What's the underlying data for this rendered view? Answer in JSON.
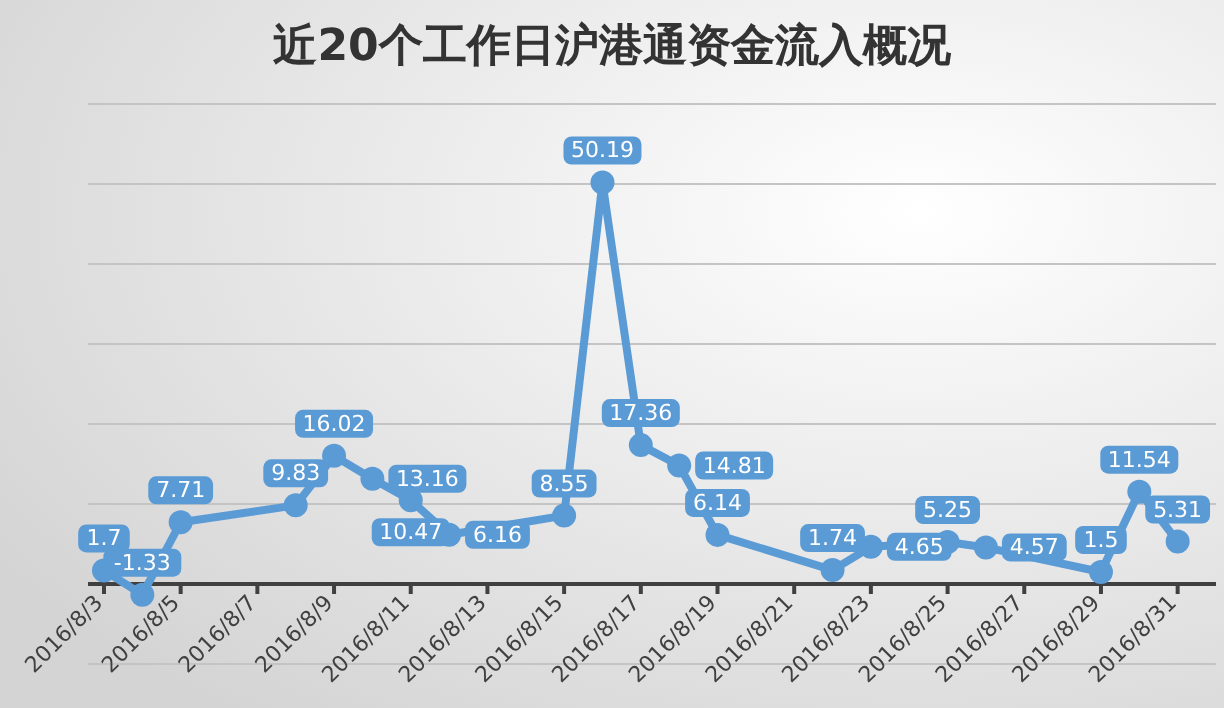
{
  "chart_data": {
    "type": "line",
    "title": "近20个工作日沪港通资金流入概况",
    "x": [
      "2016-08-03",
      "2016-08-04",
      "2016-08-05",
      "2016-08-08",
      "2016-08-09",
      "2016-08-10",
      "2016-08-11",
      "2016-08-12",
      "2016-08-15",
      "2016-08-16",
      "2016-08-17",
      "2016-08-18",
      "2016-08-19",
      "2016-08-22",
      "2016-08-23",
      "2016-08-25",
      "2016-08-26",
      "2016-08-29",
      "2016-08-30",
      "2016-08-31"
    ],
    "series": [
      {
        "color": "#5b9bd5",
        "values": [
          1.7,
          -1.33,
          7.71,
          9.83,
          16.02,
          13.16,
          10.47,
          6.16,
          8.55,
          50.19,
          17.36,
          14.81,
          6.14,
          1.74,
          4.65,
          5.25,
          4.57,
          1.5,
          11.54,
          5.31
        ]
      }
    ],
    "xlim": [
      "2016-08-02T14:00",
      "2016-09-01"
    ],
    "xticks": [
      {
        "value": "2016-08-03",
        "label": "2016/8/3"
      },
      {
        "value": "2016-08-05",
        "label": "2016/8/5"
      },
      {
        "value": "2016-08-07",
        "label": "2016/8/7"
      },
      {
        "value": "2016-08-09",
        "label": "2016/8/9"
      },
      {
        "value": "2016-08-11",
        "label": "2016/8/11"
      },
      {
        "value": "2016-08-13",
        "label": "2016/8/13"
      },
      {
        "value": "2016-08-15",
        "label": "2016/8/15"
      },
      {
        "value": "2016-08-17",
        "label": "2016/8/17"
      },
      {
        "value": "2016-08-19",
        "label": "2016/8/19"
      },
      {
        "value": "2016-08-21",
        "label": "2016/8/21"
      },
      {
        "value": "2016-08-23",
        "label": "2016/8/23"
      },
      {
        "value": "2016-08-25",
        "label": "2016/8/25"
      },
      {
        "value": "2016-08-27",
        "label": "2016/8/27"
      },
      {
        "value": "2016-08-29",
        "label": "2016/8/29"
      },
      {
        "value": "2016-08-31",
        "label": "2016/8/31"
      }
    ],
    "ylim": [
      -10,
      60
    ],
    "yticks": [
      {
        "value": -10,
        "label": null
      },
      {
        "value": 0,
        "label": null
      },
      {
        "value": 10,
        "label": null
      },
      {
        "value": 20,
        "label": null
      },
      {
        "value": 30,
        "label": null
      },
      {
        "value": 40,
        "label": null
      },
      {
        "value": 50,
        "label": null
      },
      {
        "value": 60,
        "label": null
      }
    ],
    "tick_labels": "x",
    "grid": "y",
    "marker": "circle",
    "line_style": "solid",
    "data_labels": true
  }
}
